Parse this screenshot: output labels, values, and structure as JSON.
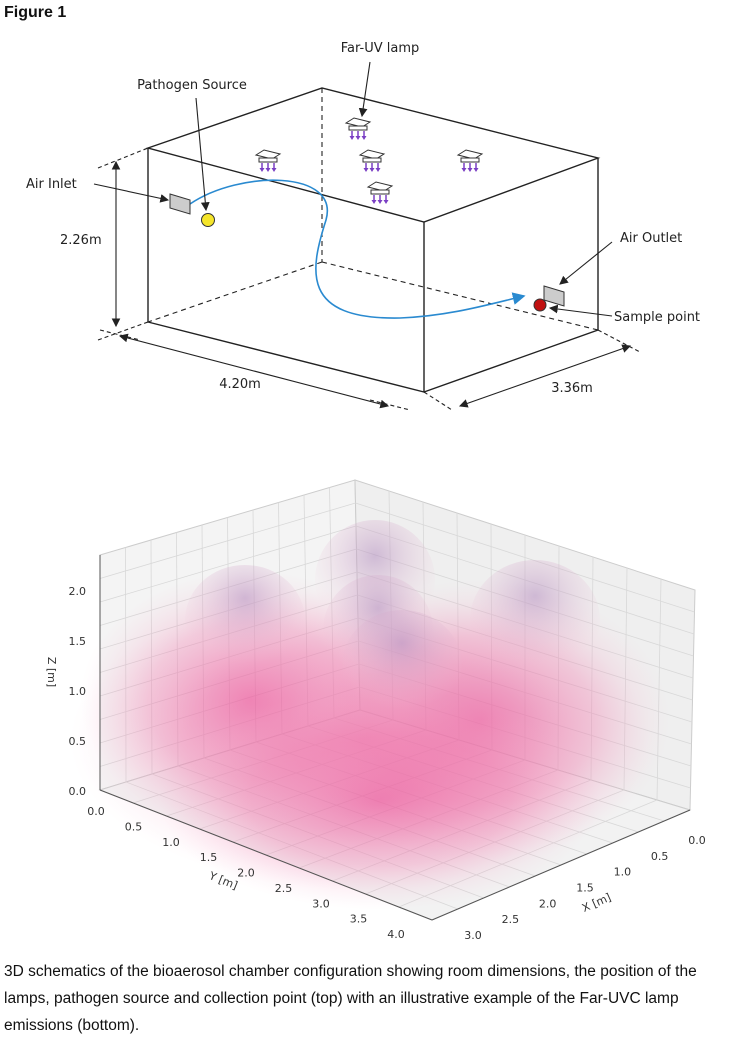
{
  "figure_label": "Figure 1",
  "schematic": {
    "labels": {
      "far_uv_lamp": "Far-UV lamp",
      "pathogen_source": "Pathogen Source",
      "air_inlet": "Air Inlet",
      "air_outlet": "Air Outlet",
      "sample_point": "Sample point"
    },
    "dimensions": {
      "height": "2.26m",
      "length": "4.20m",
      "width": "3.36m"
    }
  },
  "plot": {
    "z_label": "Z [m]",
    "y_label": "Y [m]",
    "x_label": "X [m]",
    "z_ticks": [
      "0.0",
      "0.5",
      "1.0",
      "1.5",
      "2.0"
    ],
    "y_ticks": [
      "0.0",
      "0.5",
      "1.0",
      "1.5",
      "2.0",
      "2.5",
      "3.0",
      "3.5",
      "4.0"
    ],
    "x_ticks": [
      "0.0",
      "0.5",
      "1.0",
      "1.5",
      "2.0",
      "2.5",
      "3.0"
    ]
  },
  "caption": "3D schematics of the bioaerosol chamber configuration showing room dimensions, the position of the lamps, pathogen source and collection point (top) with an illustrative example of the Far-UVC lamp emissions (bottom)."
}
